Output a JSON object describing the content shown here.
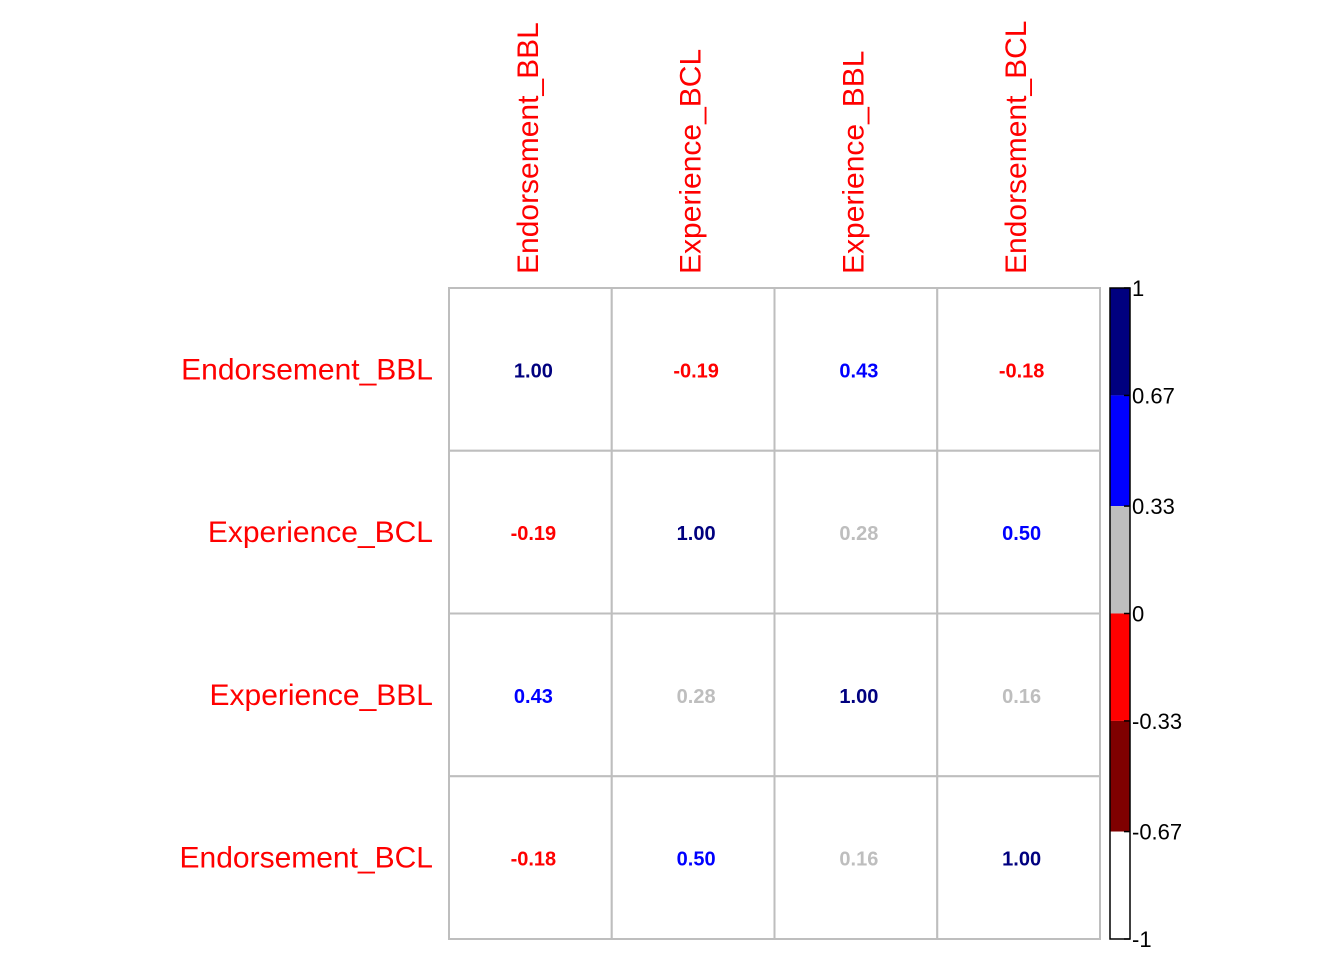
{
  "chart_data": {
    "type": "heatmap",
    "variables": [
      "Endorsement_BBL",
      "Experience_BCL",
      "Experience_BBL",
      "Endorsement_BCL"
    ],
    "matrix": [
      [
        1.0,
        -0.19,
        0.43,
        -0.18
      ],
      [
        -0.19,
        1.0,
        0.28,
        0.5
      ],
      [
        0.43,
        0.28,
        1.0,
        0.16
      ],
      [
        -0.18,
        0.5,
        0.16,
        1.0
      ]
    ],
    "value_labels": [
      [
        "1.00",
        "-0.19",
        "0.43",
        "-0.18"
      ],
      [
        "-0.19",
        "1.00",
        "0.28",
        "0.50"
      ],
      [
        "0.43",
        "0.28",
        "1.00",
        "0.16"
      ],
      [
        "-0.18",
        "0.50",
        "0.16",
        "1.00"
      ]
    ],
    "label_color": "#ff0000",
    "grid_color": "#bebebe",
    "colorbar": {
      "range": [
        -1,
        1
      ],
      "tick_labels": [
        "1",
        "0.67",
        "0.33",
        "0",
        "-0.33",
        "-0.67",
        "-1"
      ],
      "tick_values": [
        1,
        0.67,
        0.33,
        0,
        -0.33,
        -0.67,
        -1
      ],
      "bins": [
        {
          "from": 0.67,
          "to": 1,
          "color": "#00007f"
        },
        {
          "from": 0.33,
          "to": 0.67,
          "color": "#0000ff"
        },
        {
          "from": 0,
          "to": 0.33,
          "color": "#bebebe"
        },
        {
          "from": -0.33,
          "to": 0,
          "color": "#ff0000"
        },
        {
          "from": -0.67,
          "to": -0.33,
          "color": "#7f0000"
        },
        {
          "from": -1,
          "to": -0.67,
          "color": "#ffffff"
        }
      ]
    }
  }
}
